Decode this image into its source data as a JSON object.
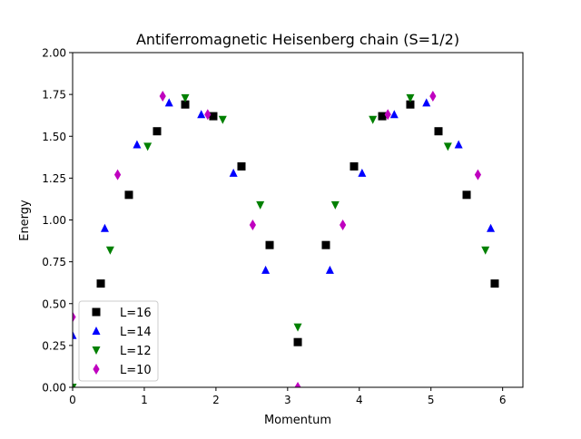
{
  "chart_data": {
    "type": "scatter",
    "title": "Antiferromagnetic Heisenberg chain (S=1/2)",
    "xlabel": "Momentum",
    "ylabel": "Energy",
    "xlim": [
      0,
      6.283
    ],
    "ylim": [
      0,
      2.0
    ],
    "xticks": [
      0,
      1,
      2,
      3,
      4,
      5,
      6
    ],
    "xtick_labels": [
      "0",
      "1",
      "2",
      "3",
      "4",
      "5",
      "6"
    ],
    "yticks": [
      0,
      0.25,
      0.5,
      0.75,
      1.0,
      1.25,
      1.5,
      1.75,
      2.0
    ],
    "ytick_labels": [
      "0.00",
      "0.25",
      "0.50",
      "0.75",
      "1.00",
      "1.25",
      "1.50",
      "1.75",
      "2.00"
    ],
    "grid": false,
    "legend_position": "lower left",
    "series": [
      {
        "name": "L=16",
        "marker": "square",
        "color": "#000000",
        "x": [
          0.393,
          0.785,
          1.178,
          1.571,
          1.963,
          2.356,
          2.749,
          3.142,
          3.534,
          3.927,
          4.32,
          4.712,
          5.105,
          5.498,
          5.89
        ],
        "y": [
          0.62,
          1.15,
          1.53,
          1.69,
          1.62,
          1.32,
          0.85,
          0.27,
          0.85,
          1.32,
          1.62,
          1.69,
          1.53,
          1.15,
          0.62
        ]
      },
      {
        "name": "L=14",
        "marker": "triangle-up",
        "color": "#0000ff",
        "x": [
          0.0,
          0.449,
          0.898,
          1.346,
          1.795,
          2.244,
          2.693,
          3.59,
          4.039,
          4.488,
          4.937,
          5.386,
          5.834
        ],
        "y": [
          0.31,
          0.95,
          1.45,
          1.7,
          1.63,
          1.28,
          0.7,
          0.7,
          1.28,
          1.63,
          1.7,
          1.45,
          0.95
        ]
      },
      {
        "name": "L=12",
        "marker": "triangle-down",
        "color": "#008000",
        "x": [
          0.0,
          0.524,
          1.047,
          1.571,
          2.094,
          2.618,
          3.142,
          3.665,
          4.189,
          4.712,
          5.236,
          5.76
        ],
        "y": [
          0.0,
          0.82,
          1.44,
          1.73,
          1.6,
          1.09,
          0.36,
          1.09,
          1.6,
          1.73,
          1.44,
          0.82
        ]
      },
      {
        "name": "L=10",
        "marker": "diamond",
        "color": "#bf00bf",
        "x": [
          0.0,
          0.628,
          1.257,
          1.885,
          2.513,
          3.142,
          3.77,
          4.398,
          5.027,
          5.655
        ],
        "y": [
          0.42,
          1.27,
          1.74,
          1.63,
          0.97,
          0.0,
          0.97,
          1.63,
          1.74,
          1.27
        ]
      }
    ]
  }
}
